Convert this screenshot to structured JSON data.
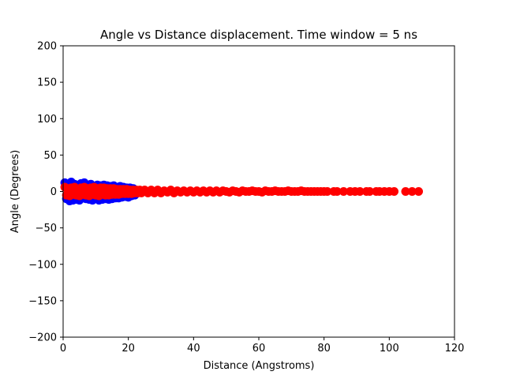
{
  "chart_data": {
    "type": "scatter",
    "title": "Angle vs Distance displacement. Time window = 5 ns",
    "xlabel": "Distance (Angstroms)",
    "ylabel": "Angle (Degrees)",
    "xlim": [
      0,
      120
    ],
    "ylim": [
      -200,
      200
    ],
    "xticks": [
      0,
      20,
      40,
      60,
      80,
      100,
      120
    ],
    "yticks": [
      -200,
      -150,
      -100,
      -50,
      0,
      50,
      100,
      150,
      200
    ],
    "xtick_labels": [
      "0",
      "20",
      "40",
      "60",
      "80",
      "100",
      "120"
    ],
    "ytick_labels": [
      "−200",
      "−150",
      "−100",
      "−50",
      "0",
      "50",
      "100",
      "150",
      "200"
    ],
    "grid": false,
    "series": [
      {
        "color": "#0000ff",
        "points": [
          [
            0.5,
            12
          ],
          [
            1.0,
            -10
          ],
          [
            1.5,
            8
          ],
          [
            2.0,
            -13
          ],
          [
            2.5,
            13
          ],
          [
            3.0,
            -12
          ],
          [
            3.5,
            10
          ],
          [
            4.0,
            -11
          ],
          [
            4.5,
            9
          ],
          [
            5.0,
            -12
          ],
          [
            5.5,
            11
          ],
          [
            6.0,
            -9
          ],
          [
            6.5,
            12
          ],
          [
            7.0,
            -10
          ],
          [
            7.5,
            8
          ],
          [
            8.0,
            -11
          ],
          [
            8.5,
            10
          ],
          [
            9.0,
            -12
          ],
          [
            9.5,
            7
          ],
          [
            10.0,
            -10
          ],
          [
            10.5,
            9
          ],
          [
            11.0,
            -12
          ],
          [
            11.5,
            8
          ],
          [
            12.0,
            -11
          ],
          [
            12.5,
            9
          ],
          [
            13.0,
            -10
          ],
          [
            13.5,
            8
          ],
          [
            14.0,
            -11
          ],
          [
            14.5,
            7
          ],
          [
            15.0,
            -10
          ],
          [
            15.5,
            8
          ],
          [
            16.0,
            -9
          ],
          [
            16.5,
            6
          ],
          [
            17.0,
            -9
          ],
          [
            17.5,
            7
          ],
          [
            18.0,
            -8
          ],
          [
            18.5,
            6
          ],
          [
            19.0,
            -7
          ],
          [
            19.5,
            5
          ],
          [
            20.0,
            -8
          ],
          [
            20.5,
            5
          ],
          [
            21.0,
            -6
          ],
          [
            21.5,
            4
          ],
          [
            22.0,
            -5
          ],
          [
            1.2,
            5
          ],
          [
            3.3,
            -6
          ],
          [
            6.8,
            4
          ],
          [
            9.9,
            -5
          ],
          [
            13.1,
            3
          ],
          [
            16.7,
            -4
          ]
        ]
      },
      {
        "color": "#ff0000",
        "points": [
          [
            0.5,
            6
          ],
          [
            1.0,
            -5
          ],
          [
            1.5,
            4
          ],
          [
            2.0,
            -6
          ],
          [
            2.5,
            5
          ],
          [
            3.0,
            -4
          ],
          [
            3.5,
            6
          ],
          [
            4.0,
            -5
          ],
          [
            4.5,
            3
          ],
          [
            5.0,
            -6
          ],
          [
            5.5,
            5
          ],
          [
            6.0,
            -4
          ],
          [
            6.5,
            6
          ],
          [
            7.0,
            -5
          ],
          [
            7.5,
            4
          ],
          [
            8.0,
            -6
          ],
          [
            8.5,
            5
          ],
          [
            9.0,
            -4
          ],
          [
            9.5,
            6
          ],
          [
            10.0,
            -5
          ],
          [
            10.5,
            4
          ],
          [
            11.0,
            -6
          ],
          [
            11.5,
            5
          ],
          [
            12.0,
            -4
          ],
          [
            12.5,
            5
          ],
          [
            13.0,
            -5
          ],
          [
            13.5,
            4
          ],
          [
            14.0,
            -5
          ],
          [
            14.5,
            4
          ],
          [
            15.0,
            -4
          ],
          [
            15.5,
            4
          ],
          [
            16.0,
            -4
          ],
          [
            16.5,
            3
          ],
          [
            17.0,
            -4
          ],
          [
            17.5,
            3
          ],
          [
            18.0,
            -3
          ],
          [
            18.5,
            3
          ],
          [
            19.0,
            -3
          ],
          [
            19.5,
            3
          ],
          [
            20.0,
            -3
          ],
          [
            20.5,
            2
          ],
          [
            21.0,
            -3
          ],
          [
            21.5,
            2
          ],
          [
            22.0,
            -2
          ],
          [
            22.5,
            2
          ],
          [
            23.0,
            -2
          ],
          [
            23.5,
            2
          ],
          [
            24.0,
            -2
          ],
          [
            25.0,
            2
          ],
          [
            26.0,
            -2
          ],
          [
            27.0,
            2
          ],
          [
            28.0,
            -2
          ],
          [
            29.0,
            2
          ],
          [
            30.0,
            -2
          ],
          [
            31.0,
            1
          ],
          [
            32.0,
            -1
          ],
          [
            33.0,
            2
          ],
          [
            34.0,
            -2
          ],
          [
            35.0,
            1
          ],
          [
            36.0,
            -1
          ],
          [
            37.0,
            1
          ],
          [
            38.0,
            -1
          ],
          [
            39.0,
            1
          ],
          [
            40.0,
            -1
          ],
          [
            41.0,
            1
          ],
          [
            42.0,
            -1
          ],
          [
            43.0,
            1
          ],
          [
            44.0,
            -1
          ],
          [
            45.0,
            1
          ],
          [
            46.0,
            -1
          ],
          [
            47.0,
            1
          ],
          [
            48.0,
            -1
          ],
          [
            49.0,
            1
          ],
          [
            50.0,
            0
          ],
          [
            51.0,
            -1
          ],
          [
            52.0,
            1
          ],
          [
            53.0,
            0
          ],
          [
            54.0,
            -1
          ],
          [
            55.0,
            1
          ],
          [
            56.0,
            0
          ],
          [
            57.0,
            0
          ],
          [
            58.0,
            1
          ],
          [
            59.0,
            0
          ],
          [
            60.0,
            0
          ],
          [
            61.0,
            -1
          ],
          [
            62.0,
            1
          ],
          [
            63.0,
            0
          ],
          [
            64.0,
            0
          ],
          [
            65.0,
            1
          ],
          [
            66.0,
            0
          ],
          [
            67.0,
            0
          ],
          [
            68.0,
            0
          ],
          [
            69.0,
            1
          ],
          [
            70.0,
            0
          ],
          [
            71.0,
            0
          ],
          [
            72.0,
            0
          ],
          [
            73.0,
            1
          ],
          [
            74.0,
            0
          ],
          [
            75.0,
            0
          ],
          [
            76.0,
            0
          ],
          [
            77.0,
            0
          ],
          [
            78.0,
            0
          ],
          [
            79.0,
            0
          ],
          [
            80.0,
            0
          ],
          [
            81.0,
            0
          ],
          [
            83.0,
            0
          ],
          [
            84.0,
            0
          ],
          [
            86.0,
            0
          ],
          [
            88.0,
            0
          ],
          [
            89.5,
            0
          ],
          [
            91.0,
            0
          ],
          [
            93.0,
            0
          ],
          [
            94.0,
            0
          ],
          [
            96.0,
            0
          ],
          [
            97.0,
            0
          ],
          [
            98.5,
            0
          ],
          [
            100.0,
            0
          ],
          [
            101.5,
            0
          ],
          [
            105.0,
            0
          ],
          [
            107.0,
            0
          ],
          [
            109.0,
            0
          ]
        ]
      }
    ]
  }
}
